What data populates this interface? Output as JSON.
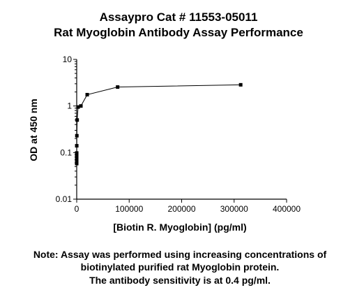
{
  "title_lines": [
    "Assaypro Cat # 11553-05011",
    "Rat Myoglobin Antibody Assay Performance"
  ],
  "note_lines": [
    "Note: Assay was performed using increasing concentrations of",
    "biotinylated purified rat Myoglobin protein.",
    "The antibody sensitivity is at 0.4 pg/ml."
  ],
  "chart_data": {
    "type": "line",
    "title": "Assaypro Cat # 11553-05011 Rat Myoglobin Antibody Assay Performance",
    "xlabel": "[Biotin R. Myoglobin] (pg/ml)",
    "ylabel": "OD at 450 nm",
    "x_scale": "linear",
    "y_scale": "log",
    "xlim": [
      0,
      400000
    ],
    "ylim": [
      0.01,
      10
    ],
    "x_ticks": [
      0,
      100000,
      200000,
      300000,
      400000
    ],
    "x_tick_labels": [
      "0",
      "100000",
      "200000",
      "300000",
      "400000"
    ],
    "y_ticks": [
      0.01,
      0.1,
      1,
      10
    ],
    "y_tick_labels": [
      "0.01",
      "0.1",
      "1",
      "10"
    ],
    "grid": false,
    "legend": false,
    "series": [
      {
        "marker": "square",
        "color": "#000000",
        "x": [
          0.4,
          1.2,
          3.7,
          11,
          33,
          99,
          296,
          889,
          2667,
          8000,
          20000,
          78000,
          312500
        ],
        "y": [
          0.058,
          0.065,
          0.072,
          0.085,
          0.098,
          0.14,
          0.23,
          0.5,
          0.95,
          1.0,
          1.75,
          2.55,
          2.85
        ]
      }
    ]
  }
}
